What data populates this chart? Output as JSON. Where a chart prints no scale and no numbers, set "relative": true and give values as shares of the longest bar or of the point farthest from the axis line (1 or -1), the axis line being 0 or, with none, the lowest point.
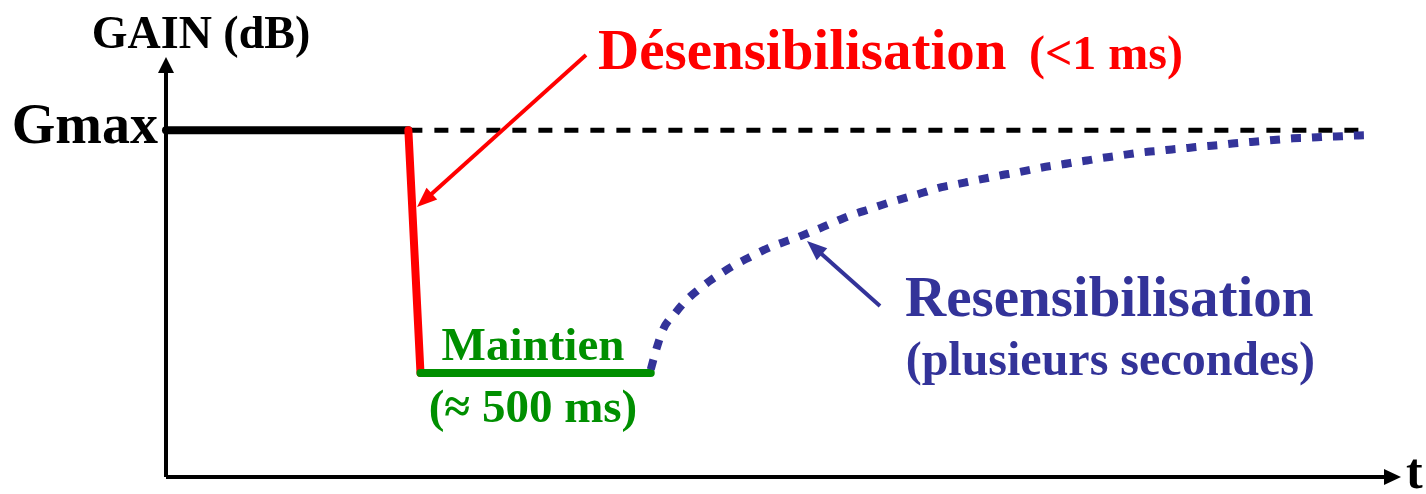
{
  "chart_data": {
    "type": "line",
    "relative": true,
    "ylabel": "GAIN (dB)",
    "xlabel": "t",
    "categories": [
      null,
      null,
      null,
      null,
      null,
      null,
      null,
      null,
      null,
      null,
      null,
      null,
      null,
      null,
      null,
      null,
      null,
      null,
      null,
      null,
      null,
      null,
      null,
      null,
      null,
      null,
      null,
      null,
      null,
      null,
      null,
      null,
      null,
      null,
      null,
      null,
      null,
      null,
      null,
      null,
      null,
      null,
      null,
      null,
      null,
      null,
      null,
      null,
      null,
      null,
      null,
      null,
      null,
      null,
      null,
      null,
      null,
      null,
      null,
      null,
      null,
      null,
      null,
      null,
      null,
      null,
      null,
      null,
      null,
      null,
      null,
      null,
      null,
      null,
      null,
      null,
      null,
      null,
      null,
      null,
      null,
      null,
      null,
      null,
      null,
      null,
      null,
      null,
      null,
      null,
      null,
      null,
      null,
      null,
      null,
      null,
      null,
      null,
      null,
      null,
      null,
      null
    ],
    "series": [
      {
        "color": "#000000",
        "values": [
          1,
          1,
          1,
          1,
          1,
          1,
          1,
          1,
          1,
          1,
          1,
          1,
          1,
          1,
          1,
          1,
          1,
          1,
          1,
          1,
          1,
          null,
          null,
          null,
          null,
          null,
          null,
          null,
          null,
          null,
          null,
          null,
          null,
          null,
          null,
          null,
          null,
          null,
          null,
          null,
          null,
          null,
          null,
          null,
          null,
          null,
          null,
          null,
          null,
          null,
          null,
          null,
          null,
          null,
          null,
          null,
          null,
          null,
          null,
          null,
          null,
          null,
          null,
          null,
          null,
          null,
          null,
          null,
          null,
          null,
          null,
          null,
          null,
          null,
          null,
          null,
          null,
          null,
          null,
          null,
          null,
          null,
          null,
          null,
          null,
          null,
          null,
          null,
          null,
          null,
          null,
          null,
          null,
          null,
          null,
          null,
          null,
          null,
          null,
          null,
          null,
          null
        ]
      },
      {
        "color": "#000000",
        "line_style": "dashed",
        "values": [
          null,
          null,
          null,
          null,
          null,
          null,
          null,
          null,
          null,
          null,
          null,
          null,
          null,
          null,
          null,
          null,
          null,
          null,
          null,
          null,
          1,
          1,
          1,
          1,
          1,
          1,
          1,
          1,
          1,
          1,
          1,
          1,
          1,
          1,
          1,
          1,
          1,
          1,
          1,
          1,
          1,
          1,
          1,
          1,
          1,
          1,
          1,
          1,
          1,
          1,
          1,
          1,
          1,
          1,
          1,
          1,
          1,
          1,
          1,
          1,
          1,
          1,
          1,
          1,
          1,
          1,
          1,
          1,
          1,
          1,
          1,
          1,
          1,
          1,
          1,
          1,
          1,
          1,
          1,
          1,
          1,
          1,
          1,
          1,
          1,
          1,
          1,
          1,
          1,
          1,
          1,
          1,
          1,
          1,
          1,
          1,
          1,
          1,
          1,
          1,
          null,
          null
        ]
      },
      {
        "name": "Désensibilisation",
        "color": "#ff0000",
        "values": [
          null,
          null,
          null,
          null,
          null,
          null,
          null,
          null,
          null,
          null,
          null,
          null,
          null,
          null,
          null,
          null,
          null,
          null,
          null,
          null,
          1,
          0.3,
          null,
          null,
          null,
          null,
          null,
          null,
          null,
          null,
          null,
          null,
          null,
          null,
          null,
          null,
          null,
          null,
          null,
          null,
          null,
          null,
          null,
          null,
          null,
          null,
          null,
          null,
          null,
          null,
          null,
          null,
          null,
          null,
          null,
          null,
          null,
          null,
          null,
          null,
          null,
          null,
          null,
          null,
          null,
          null,
          null,
          null,
          null,
          null,
          null,
          null,
          null,
          null,
          null,
          null,
          null,
          null,
          null,
          null,
          null,
          null,
          null,
          null,
          null,
          null,
          null,
          null,
          null,
          null,
          null,
          null,
          null,
          null,
          null,
          null,
          null,
          null,
          null,
          null,
          null,
          null
        ]
      },
      {
        "name": "Maintien",
        "color": "#008f00",
        "values": [
          null,
          null,
          null,
          null,
          null,
          null,
          null,
          null,
          null,
          null,
          null,
          null,
          null,
          null,
          null,
          null,
          null,
          null,
          null,
          null,
          null,
          0.3,
          0.3,
          0.3,
          0.3,
          0.3,
          0.3,
          0.3,
          0.3,
          0.3,
          0.3,
          0.3,
          0.3,
          0.3,
          0.3,
          0.3,
          0.3,
          0.3,
          0.3,
          0.3,
          0.3,
          null,
          null,
          null,
          null,
          null,
          null,
          null,
          null,
          null,
          null,
          null,
          null,
          null,
          null,
          null,
          null,
          null,
          null,
          null,
          null,
          null,
          null,
          null,
          null,
          null,
          null,
          null,
          null,
          null,
          null,
          null,
          null,
          null,
          null,
          null,
          null,
          null,
          null,
          null,
          null,
          null,
          null,
          null,
          null,
          null,
          null,
          null,
          null,
          null,
          null,
          null,
          null,
          null,
          null,
          null,
          null,
          null,
          null,
          null,
          null,
          null
        ]
      },
      {
        "name": "Resensibilisation",
        "color": "#333399",
        "line_style": "dotted",
        "values": [
          null,
          null,
          null,
          null,
          null,
          null,
          null,
          null,
          null,
          null,
          null,
          null,
          null,
          null,
          null,
          null,
          null,
          null,
          null,
          null,
          null,
          null,
          null,
          null,
          null,
          null,
          null,
          null,
          null,
          null,
          null,
          null,
          null,
          null,
          null,
          null,
          null,
          null,
          null,
          null,
          0.31,
          0.424,
          0.472,
          0.512,
          0.542,
          0.569,
          0.592,
          0.613,
          0.631,
          0.649,
          0.665,
          0.678,
          0.69,
          0.704,
          0.718,
          0.733,
          0.748,
          0.761,
          0.772,
          0.784,
          0.795,
          0.805,
          0.815,
          0.826,
          0.836,
          0.843,
          0.85,
          0.857,
          0.864,
          0.871,
          0.877,
          0.884,
          0.891,
          0.897,
          0.902,
          0.908,
          0.913,
          0.919,
          0.924,
          0.929,
          0.934,
          0.938,
          0.941,
          0.945,
          0.948,
          0.952,
          0.955,
          0.958,
          0.962,
          0.965,
          0.968,
          0.971,
          0.974,
          0.977,
          0.978,
          0.98,
          0.982,
          0.983,
          0.985,
          0.986,
          null,
          null
        ]
      }
    ],
    "annotations": [
      "Gmax",
      "(<1 ms)",
      "(≈ 500 ms)",
      "(plusieurs secondes)"
    ]
  }
}
